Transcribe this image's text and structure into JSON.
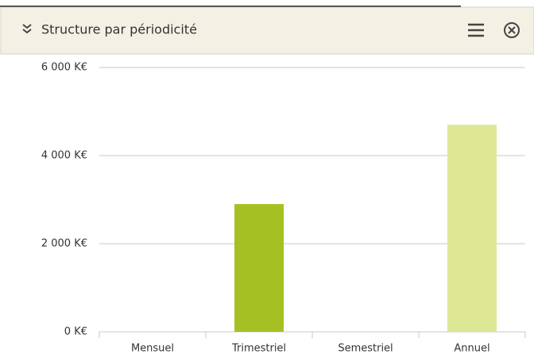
{
  "header": {
    "title": "Structure par périodicité"
  },
  "chart_data": {
    "type": "bar",
    "categories": [
      "Mensuel",
      "Trimestriel",
      "Semestriel",
      "Annuel"
    ],
    "values": [
      0,
      2900,
      0,
      4700
    ],
    "colors": [
      "#a5c023",
      "#a5c023",
      "#dde794",
      "#dde794"
    ],
    "ylim": [
      0,
      6000
    ],
    "yticks": [
      {
        "value": 0,
        "label": "0 K€"
      },
      {
        "value": 2000,
        "label": "2 000 K€"
      },
      {
        "value": 4000,
        "label": "4 000 K€"
      },
      {
        "value": 6000,
        "label": "6 000 K€"
      }
    ],
    "grid": true
  }
}
